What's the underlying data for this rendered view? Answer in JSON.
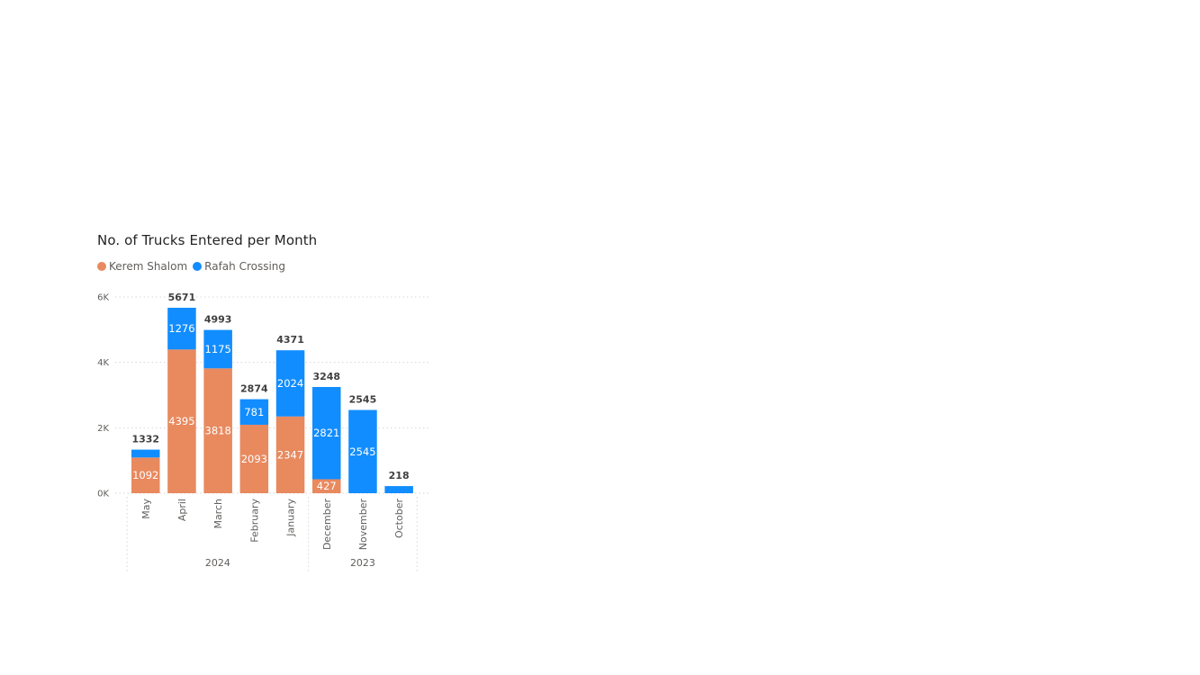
{
  "colors": {
    "kerem": "#E8895E",
    "rafah": "#118DFF",
    "grid": "#D6D6D6",
    "text": "#605e5c"
  },
  "chart_data": {
    "type": "bar",
    "stacked": true,
    "title": "No. of Trucks Entered per Month",
    "xlabel": "",
    "ylabel": "",
    "ylim": [
      0,
      6000
    ],
    "yticks": [
      0,
      2000,
      4000,
      6000
    ],
    "ytick_labels": [
      "0K",
      "2K",
      "4K",
      "6K"
    ],
    "grid": true,
    "legend": "top-left",
    "categories": [
      "May",
      "April",
      "March",
      "February",
      "January",
      "December",
      "November",
      "October"
    ],
    "groups": [
      {
        "label": "2024",
        "count": 5
      },
      {
        "label": "2023",
        "count": 3
      }
    ],
    "series": [
      {
        "name": "Kerem Shalom",
        "color": "#E8895E",
        "values": [
          1092,
          4395,
          3818,
          2093,
          2347,
          427,
          0,
          0
        ]
      },
      {
        "name": "Rafah Crossing",
        "color": "#118DFF",
        "values": [
          240,
          1276,
          1175,
          781,
          2024,
          2821,
          2545,
          218
        ]
      }
    ],
    "segment_labels": [
      [
        "1092",
        "4395",
        "3818",
        "2093",
        "2347",
        "427",
        "",
        ""
      ],
      [
        "",
        "1276",
        "1175",
        "781",
        "2024",
        "2821",
        "2545",
        ""
      ]
    ],
    "totals": [
      1332,
      5671,
      4993,
      2874,
      4371,
      3248,
      2545,
      218
    ],
    "total_labels": [
      "1332",
      "5671",
      "4993",
      "2874",
      "4371",
      "3248",
      "2545",
      "218"
    ]
  }
}
